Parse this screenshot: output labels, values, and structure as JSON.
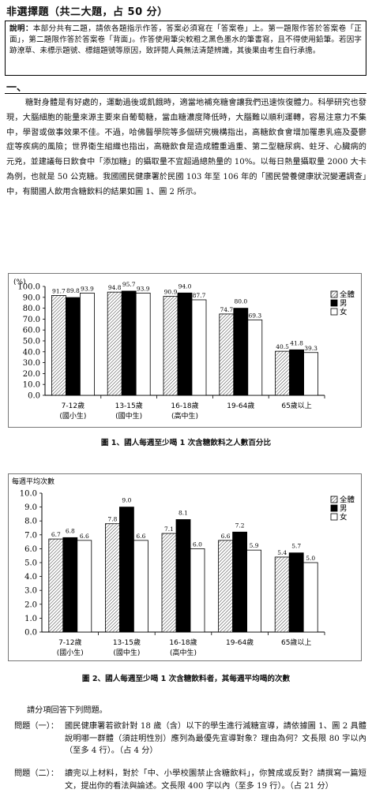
{
  "header": {
    "title": "非選擇題（共二大題，占 50 分）"
  },
  "notice": {
    "label": "說明：",
    "text": "本部分共有二題，請依各題指示作答，答案必須寫在「答案卷」上。第一題限作答於答案卷「正面」，第二題限作答於答案卷「背面」。作答使用筆尖較粗之黑色墨水的筆書寫，且不得使用鉛筆。若因字跡潦草、未標示題號、標錯題號等原因，致評閱人員無法清楚辨識，其後果由考生自行承擔。"
  },
  "section": {
    "title": "一、"
  },
  "passage": "糖對身體是有好處的，運動過後或飢餓時，適當地補充糖會讓我們迅速恢復體力。科學研究也發現，大腦細胞的能量來源主要來自葡萄糖，當血糖濃度降低時，大腦難以順利運轉，容易注意力不集中，學習或做事效果不佳。不過，哈佛醫學院等多個研究機構指出，高糖飲食會增加罹患乳癌及憂鬱症等疾病的風險；世界衛生組織也指出，高糖飲食是造成體重過重、第二型糖尿病、蛀牙、心臟病的元兇，並建議每日飲食中「添加糖」的攝取量不宜超過總熱量的 10%。以每日熱量攝取量 2000 大卡為例，也就是 50 公克糖。我國國民健康署於民國 103 年至 106 年的「國民營養健康狀況變遷調查」中，有關國人飲用含糖飲料的結果如圖 1、圖 2 所示。",
  "chart_data": [
    {
      "type": "bar",
      "title": "圖 1、國人每週至少喝 1 次含糖飲料之人數百分比",
      "ylabel": "(%)",
      "ylim": [
        0,
        100
      ],
      "yticks": [
        "0.0",
        "10.0",
        "20.0",
        "30.0",
        "40.0",
        "50.0",
        "60.0",
        "70.0",
        "80.0",
        "90.0",
        "100.0"
      ],
      "categories": [
        [
          "7-12歲",
          "(國小生)"
        ],
        [
          "13-15歲",
          "(國中生)"
        ],
        [
          "16-18歲",
          "(高中生)"
        ],
        [
          "19-64歲",
          ""
        ],
        [
          "65歲以上",
          ""
        ]
      ],
      "series": [
        {
          "name": "全體",
          "values": [
            91.7,
            94.8,
            90.9,
            74.7,
            40.5
          ]
        },
        {
          "name": "男",
          "values": [
            89.8,
            95.7,
            94.0,
            80.0,
            41.8
          ]
        },
        {
          "name": "女",
          "values": [
            93.9,
            93.9,
            87.7,
            69.3,
            39.3
          ]
        }
      ],
      "grid": false,
      "legend": "top-right"
    },
    {
      "type": "bar",
      "title": "圖 2、國人每週至少喝 1 次含糖飲料者，其每週平均喝的次數",
      "ylabel": "每週平均次數",
      "ylim": [
        0,
        10
      ],
      "yticks": [
        "0.0",
        "1.0",
        "2.0",
        "3.0",
        "4.0",
        "5.0",
        "6.0",
        "7.0",
        "8.0",
        "9.0",
        "10.0"
      ],
      "categories": [
        [
          "7-12歲",
          "(國小生)"
        ],
        [
          "13-15歲",
          "(國中生)"
        ],
        [
          "16-18歲",
          "(高中生)"
        ],
        [
          "19-64歲",
          ""
        ],
        [
          "65歲以上",
          ""
        ]
      ],
      "series": [
        {
          "name": "全體",
          "values": [
            6.7,
            7.8,
            7.1,
            6.6,
            5.4
          ]
        },
        {
          "name": "男",
          "values": [
            6.8,
            9.0,
            8.1,
            7.2,
            5.7
          ]
        },
        {
          "name": "女",
          "values": [
            6.6,
            6.6,
            6.0,
            5.9,
            5.0
          ]
        }
      ],
      "grid": false,
      "legend": "top-right"
    }
  ],
  "instructions": "請分項回答下列問題。",
  "questions": [
    {
      "label": "問題（一）：",
      "text": "國民健康署若欲針對 18 歲（含）以下的學生進行減糖宣導，請依據圖 1、圖 2 具體說明哪一群體（須註明性別）應列為最優先宣導對象？理由為何？文長限 80 字以內（至多 4 行）。（占 4 分）"
    },
    {
      "label": "問題（二）：",
      "text": "讀完以上材料，對於「中、小學校園禁止含糖飲料」，你贊成或反對？請撰寫一篇短文，提出你的看法與論述。文長限 400 字以內（至多 19 行）。（占 21 分）"
    }
  ],
  "colors": {
    "series_full": "#d8d8d8",
    "series_male": "#000000",
    "series_female": "#ffffff",
    "border": "#000000"
  }
}
